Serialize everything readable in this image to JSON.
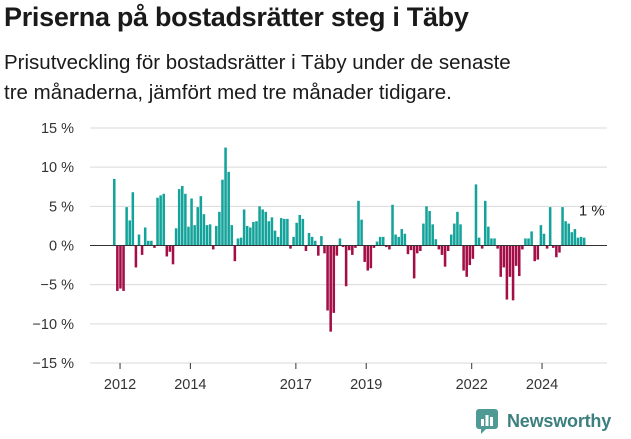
{
  "title": "Priserna på bostadsrätter steg i Täby",
  "subtitle": "Prisutveckling för bostadsrätter i Täby under de senaste\ntre månaderna, jämfört med tre månader tidigare.",
  "brand": {
    "name": "Newsworthy",
    "icon": "newsworthy-logo-icon",
    "color": "#3d8a8a"
  },
  "chart_data": {
    "type": "bar",
    "title": "Priserna på bostadsrätter steg i Täby",
    "xlabel": "",
    "ylabel": "",
    "ylim": [
      -15,
      15
    ],
    "yticks": [
      15,
      10,
      5,
      0,
      -5,
      -10,
      -15
    ],
    "ytick_labels": [
      "15 %",
      "10 %",
      "5 %",
      "0 %",
      "−5 %",
      "−10 %",
      "−15 %"
    ],
    "xticks": [
      2012,
      2014,
      2017,
      2019,
      2022,
      2024
    ],
    "xtick_labels": [
      "2012",
      "2014",
      "2017",
      "2019",
      "2022",
      "2024"
    ],
    "x_start": 2011.8,
    "x_end": 2025.25,
    "start_month": "2011-11",
    "positive_color": "#13a39a",
    "negative_color": "#a30e46",
    "grid": true,
    "last_label": "1 %",
    "values": [
      8.5,
      -5.8,
      -5.5,
      -5.8,
      4.9,
      3.2,
      6.8,
      -2.8,
      1.4,
      -1.2,
      2.3,
      0.6,
      0.6,
      -0.3,
      6.1,
      6.4,
      6.6,
      -1.4,
      -0.8,
      -2.4,
      2.2,
      7.2,
      7.6,
      6.6,
      2.4,
      6.0,
      2.6,
      4.9,
      6.3,
      4.0,
      2.6,
      2.7,
      -0.5,
      2.5,
      4.3,
      8.4,
      12.5,
      9.4,
      2.6,
      -2.0,
      0.9,
      1.0,
      4.6,
      2.5,
      2.3,
      3.0,
      3.1,
      5.0,
      4.6,
      4.3,
      3.1,
      3.6,
      1.9,
      1.1,
      3.5,
      3.4,
      3.4,
      -0.4,
      1.1,
      2.9,
      3.9,
      3.4,
      -0.7,
      1.6,
      1.1,
      0.6,
      -1.3,
      1.2,
      -1.0,
      -8.3,
      -11.0,
      -8.6,
      -1.3,
      0.9,
      -0.2,
      -5.2,
      -0.6,
      -1.2,
      -0.3,
      5.7,
      3.3,
      -2.1,
      -3.2,
      -2.9,
      -0.3,
      0.5,
      1.1,
      1.1,
      -0.2,
      -0.5,
      5.2,
      1.4,
      1.1,
      2.1,
      1.5,
      -1.1,
      -0.6,
      -4.2,
      -1.0,
      -0.7,
      2.8,
      5.0,
      4.4,
      2.7,
      0.8,
      -0.5,
      -1.2,
      -2.7,
      -0.7,
      1.4,
      2.8,
      4.3,
      2.7,
      -3.2,
      -4.0,
      -2.5,
      -1.7,
      7.8,
      1.0,
      -0.4,
      5.7,
      2.4,
      0.9,
      0.9,
      -0.4,
      -4.0,
      -2.8,
      -6.9,
      -4.0,
      -7.0,
      -2.6,
      -3.9,
      -0.5,
      0.9,
      0.9,
      1.8,
      -2.0,
      -1.8,
      2.6,
      1.5,
      -0.4,
      4.9,
      -0.3,
      -1.5,
      -0.9,
      4.9,
      3.1,
      2.8,
      1.7,
      2.1,
      1.0,
      1.1,
      1.0
    ]
  }
}
